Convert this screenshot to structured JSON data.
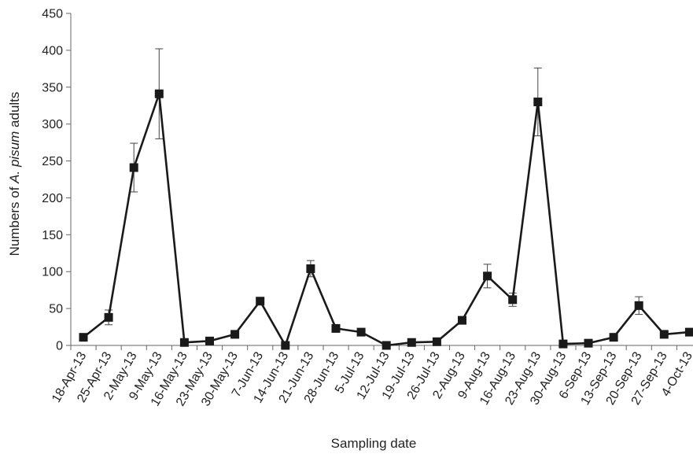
{
  "chart_data": {
    "type": "line",
    "title": "",
    "xlabel": "Sampling date",
    "ylabel": {
      "prefix": "Numbers of ",
      "italic": "A. pisum",
      "suffix": " adults"
    },
    "ylim": [
      0,
      450
    ],
    "yticks": [
      "0",
      "50",
      "100",
      "150",
      "200",
      "250",
      "300",
      "350",
      "400",
      "450"
    ],
    "grid": false,
    "legend": "none",
    "line_color": "#1a1a1a",
    "marker": "square",
    "categories": [
      "18-Apr-13",
      "25-Apr-13",
      "2-May-13",
      "9-May-13",
      "16-May-13",
      "23-May-13",
      "30-May-13",
      "7-Jun-13",
      "14-Jun-13",
      "21-Jun-13",
      "28-Jun-13",
      "5-Jul-13",
      "12-Jul-13",
      "19-Jul-13",
      "26-Jul-13",
      "2-Aug-13",
      "9-Aug-13",
      "16-Aug-13",
      "23-Aug-13",
      "30-Aug-13",
      "6-Sep-13",
      "13-Sep-13",
      "20-Sep-13",
      "27-Sep-13",
      "4-Oct-13"
    ],
    "values": [
      11,
      38,
      241,
      341,
      4,
      6,
      15,
      60,
      0,
      104,
      23,
      18,
      0,
      4,
      5,
      34,
      94,
      62,
      330,
      2,
      3,
      11,
      54,
      15,
      18
    ],
    "errors": [
      0,
      10,
      33,
      61,
      0,
      0,
      0,
      0,
      0,
      11,
      0,
      0,
      0,
      0,
      0,
      0,
      16,
      9,
      46,
      0,
      0,
      0,
      12,
      0,
      0
    ]
  }
}
